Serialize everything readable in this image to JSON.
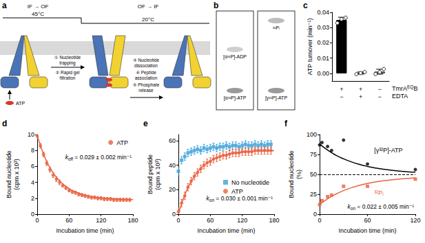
{
  "diagram": {
    "panel": "a",
    "phases": [
      {
        "label": "IF → OF",
        "temperature": "45°C"
      },
      {
        "label": "OF → IF",
        "temperature": "20°C"
      }
    ],
    "steps": [
      "① Nucleotide trapping",
      "② Rapid gel filtration",
      "③ Nucleotide dissociation",
      "④ Peptide association",
      "⑤ Phosphate release"
    ],
    "substrate": "ATP"
  },
  "gels": {
    "panel": "b",
    "lanes": [
      {
        "bands": [
          "[α³²P]-ADP",
          "[α³²P]-ATP"
        ]
      },
      {
        "bands": [
          "³²Pᵢ",
          "[γ³²P]-ATP"
        ]
      }
    ]
  },
  "chart_data": [
    {
      "panel": "c",
      "type": "bar",
      "y_label": "ATP turnover (min⁻¹)",
      "conditions": [
        {
          "label": "TmrA",
          "sup": "EQ",
          "after": "B",
          "marks": [
            "+",
            "+",
            "−"
          ]
        },
        {
          "label": "EDTA",
          "marks": [
            "−",
            "+",
            "−"
          ]
        }
      ],
      "values": [
        0.035,
        0.0002,
        0.0011
      ],
      "errors": [
        0.0018,
        0.0007,
        0.0016
      ],
      "points": [
        [
          0.033,
          0.0355,
          0.0365
        ],
        [
          -0.0005,
          0.0002,
          0.0009
        ],
        [
          -0.0004,
          0.0008,
          0.0028
        ]
      ],
      "colors": [
        "#000000",
        "#ffffff",
        "#ffffff"
      ],
      "ylim": [
        -0.005,
        0.04
      ],
      "yticks": [
        {
          "value": 0,
          "label": "0.00"
        },
        {
          "value": 0.01,
          "label": "0.01"
        },
        {
          "value": 0.02,
          "label": "0.02"
        },
        {
          "value": 0.03,
          "label": "0.03"
        },
        {
          "value": 0.04,
          "label": "0.04"
        }
      ]
    },
    {
      "panel": "d",
      "type": "scatter",
      "x_label": "Incubation time (min)",
      "y_label": "Bound nucleotide (cpm x 10³)",
      "xlim": [
        0,
        180
      ],
      "xticks": [
        0,
        60,
        120,
        180
      ],
      "ylim": [
        0,
        10
      ],
      "yticks": [
        0,
        2,
        4,
        6,
        8,
        10
      ],
      "legend": "upper right",
      "annotation": {
        "symbol": "k",
        "sub": "off",
        "rest": " = 0.029 ± 0.002 min⁻¹"
      },
      "series": [
        {
          "name": "ATP",
          "color": "#e9623f",
          "marker": "circle",
          "x": [
            0,
            6,
            12,
            18,
            24,
            30,
            36,
            42,
            48,
            54,
            60,
            66,
            72,
            78,
            84,
            90,
            96,
            102,
            108,
            114,
            120,
            126,
            132,
            138,
            144,
            150,
            156,
            162,
            168,
            174
          ],
          "values": [
            9.8,
            8.6,
            7.5,
            6.4,
            5.6,
            4.9,
            4.4,
            4.0,
            3.6,
            3.3,
            3.0,
            2.8,
            2.7,
            2.5,
            2.4,
            2.3,
            2.2,
            2.1,
            2.1,
            2.0,
            2.0,
            1.9,
            1.9,
            1.9,
            1.8,
            1.8,
            1.8,
            1.8,
            1.8,
            1.8
          ],
          "errors": [
            0.4,
            0.3,
            0.3,
            0.3,
            0.3,
            0.3,
            0.3,
            0.3,
            0.2,
            0.2,
            0.2,
            0.2,
            0.2,
            0.2,
            0.2,
            0.2,
            0.2,
            0.2,
            0.2,
            0.2,
            0.2,
            0.2,
            0.2,
            0.2,
            0.2,
            0.2,
            0.2,
            0.2,
            0.2,
            0.2
          ],
          "fit": {
            "x": [
              0,
              10,
              20,
              30,
              40,
              50,
              60,
              70,
              80,
              90,
              100,
              110,
              120,
              130,
              140,
              150,
              160,
              170,
              180
            ],
            "values": [
              9.9,
              7.86,
              6.33,
              5.19,
              4.33,
              3.69,
              3.21,
              2.85,
              2.58,
              2.38,
              2.23,
              2.12,
              2.04,
              1.98,
              1.93,
              1.9,
              1.87,
              1.85,
              1.84
            ]
          }
        }
      ]
    },
    {
      "panel": "e",
      "type": "scatter",
      "x_label": "Incubation time (min)",
      "y_label": "Bound peptide (cpm x 10³)",
      "xlim": [
        0,
        180
      ],
      "xticks": [
        0,
        60,
        120,
        180
      ],
      "ylim": [
        0,
        65
      ],
      "yticks": [
        0,
        20,
        40,
        60
      ],
      "legend": "lower right",
      "annotation": {
        "symbol": "k",
        "sub": "on",
        "rest": " = 0.030 ± 0.001 min⁻¹"
      },
      "series": [
        {
          "name": "No nucleotide",
          "color": "#3fa3db",
          "marker": "square",
          "x": [
            0,
            6,
            12,
            18,
            24,
            30,
            36,
            42,
            48,
            54,
            60,
            66,
            72,
            78,
            84,
            90,
            96,
            102,
            108,
            114,
            120,
            126,
            132,
            138,
            144,
            150,
            156,
            162,
            168,
            174
          ],
          "values": [
            35,
            44,
            47,
            50,
            51,
            52,
            53,
            52,
            54,
            53,
            54,
            55,
            54,
            55,
            55,
            56,
            55,
            56,
            56,
            55,
            56,
            57,
            56,
            56,
            57,
            56,
            57,
            56,
            57,
            57
          ],
          "errors": [
            3,
            3,
            3,
            3,
            3,
            3,
            3,
            3,
            3,
            3,
            3,
            3,
            3,
            3,
            3,
            3,
            3,
            3,
            3,
            3,
            3,
            3,
            3,
            3,
            3,
            3,
            3,
            3,
            3,
            3
          ]
        },
        {
          "name": "ATP",
          "color": "#e9623f",
          "marker": "circle",
          "x": [
            0,
            6,
            12,
            18,
            24,
            30,
            36,
            42,
            48,
            54,
            60,
            66,
            72,
            78,
            84,
            90,
            96,
            102,
            108,
            114,
            120,
            126,
            132,
            138,
            144,
            150,
            156,
            162,
            168,
            174
          ],
          "values": [
            2,
            9,
            15,
            22,
            27,
            31,
            34,
            37,
            40,
            42,
            43,
            45,
            46,
            47,
            48,
            48,
            49,
            50,
            50,
            50,
            51,
            51,
            51,
            51,
            52,
            52,
            52,
            52,
            52,
            52
          ],
          "errors": [
            3,
            3,
            3,
            3,
            3,
            3,
            3,
            3,
            3,
            3,
            3,
            3,
            3,
            3,
            3,
            3,
            3,
            3,
            3,
            3,
            3,
            3,
            3,
            3,
            3,
            3,
            3,
            3,
            3,
            3
          ],
          "fit": {
            "x": [
              0,
              10,
              20,
              30,
              40,
              50,
              60,
              70,
              80,
              90,
              100,
              110,
              120,
              130,
              140,
              150,
              160,
              170,
              180
            ],
            "values": [
              0,
              13.5,
              23.5,
              30.9,
              36.4,
              40.5,
              43.5,
              45.7,
              47.4,
              48.6,
              49.5,
              50.2,
              50.7,
              51,
              51.3,
              51.5,
              51.6,
              51.7,
              51.8
            ]
          }
        }
      ]
    },
    {
      "panel": "f",
      "type": "scatter",
      "x_label": "Incubation time (min)",
      "y_label": "Bound nucleotide (%)",
      "xlim": [
        0,
        120
      ],
      "xticks": [
        0,
        60,
        120
      ],
      "ylim": [
        0,
        100
      ],
      "yticks": [
        0,
        25,
        50,
        75,
        100
      ],
      "hlines": [
        {
          "y": 50,
          "line_style": "dashed"
        }
      ],
      "annotation": {
        "symbol": "k",
        "sub": "on",
        "rest": " = 0.022 ± 0.005 min⁻¹"
      },
      "series": [
        {
          "name": "[γ³²P]-ATP",
          "color": "#000000",
          "marker": "circle",
          "x": [
            0,
            3,
            10,
            15,
            30,
            60,
            120
          ],
          "values": [
            87,
            90,
            85,
            80,
            93,
            63,
            56
          ],
          "fit": {
            "x": [
              0,
              10,
              20,
              30,
              40,
              50,
              60,
              70,
              80,
              90,
              100,
              110,
              120
            ],
            "values": [
              88,
              80.4,
              74.3,
              69.5,
              65.6,
              62.5,
              60,
              58,
              56.4,
              55.1,
              54.1,
              53.3,
              52.7
            ]
          }
        },
        {
          "name": "³²Pᵢ",
          "color": "#e9623f",
          "marker": "square",
          "x": [
            0,
            3,
            10,
            15,
            30,
            60,
            120
          ],
          "values": [
            12,
            17,
            22,
            24,
            35,
            35,
            44
          ],
          "fit": {
            "x": [
              0,
              10,
              20,
              30,
              40,
              50,
              60,
              70,
              80,
              90,
              100,
              110,
              120
            ],
            "values": [
              12,
              19.2,
              25,
              29.6,
              33.3,
              36.2,
              38.6,
              40.5,
              42,
              43.2,
              44.1,
              44.9,
              45.5
            ]
          }
        }
      ]
    }
  ]
}
